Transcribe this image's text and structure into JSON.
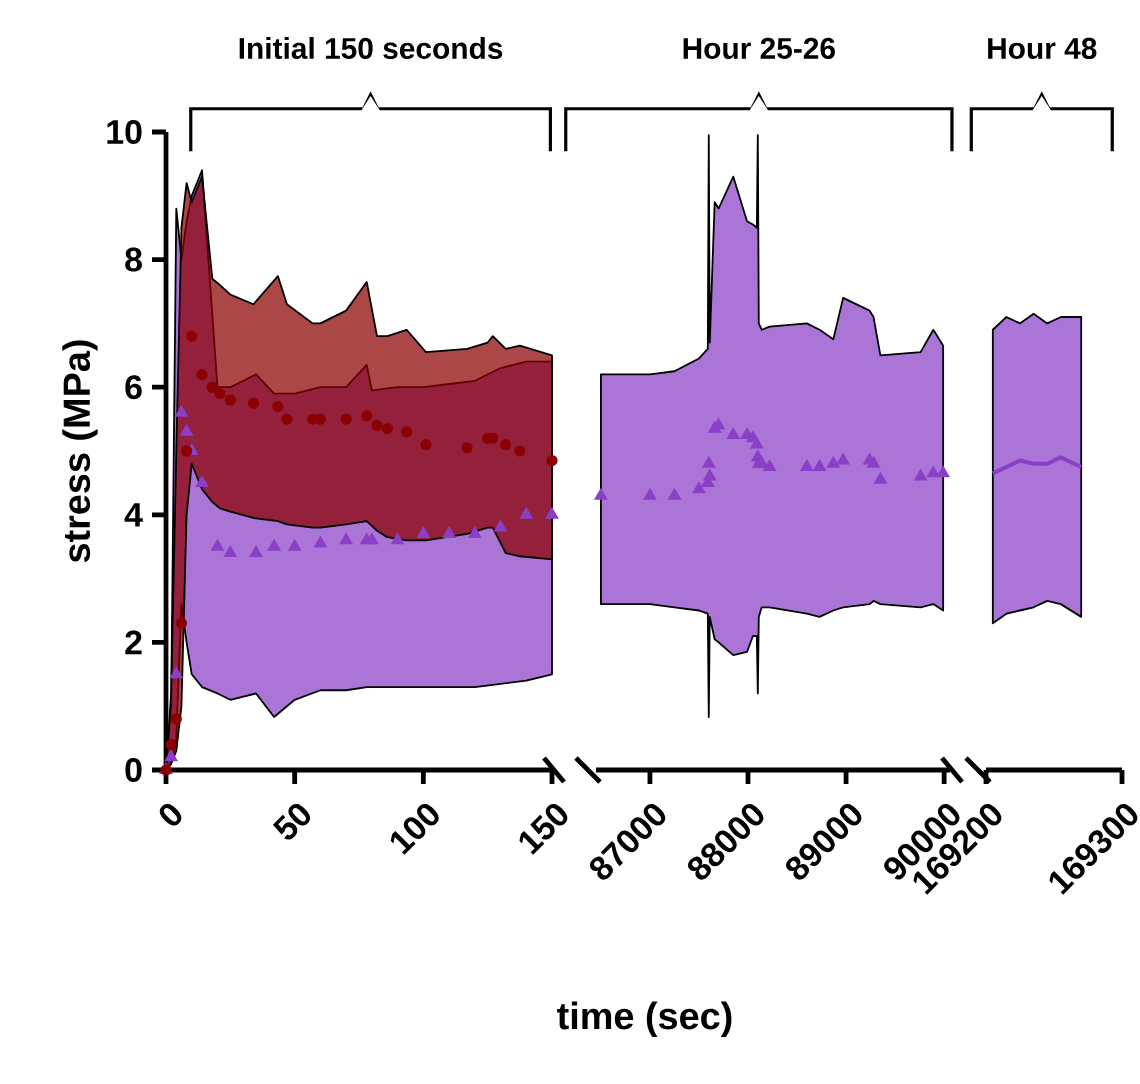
{
  "chart_data": [
    {
      "type": "scatter",
      "title": "Initial 150 seconds",
      "ylabel": "stress (MPa)",
      "xlim": [
        0,
        150
      ],
      "ylim": [
        0,
        10
      ],
      "xticks": [
        0,
        50,
        100,
        150
      ],
      "yticks": [
        0,
        2,
        4,
        6,
        8,
        10
      ],
      "series": [
        {
          "color": "#8a3fc7",
          "marker": "triangle",
          "x": [
            0,
            2,
            4,
            6,
            8,
            10,
            14,
            20,
            25,
            35,
            42,
            50,
            60,
            70,
            78,
            80,
            90,
            100,
            110,
            120,
            130,
            140,
            150
          ],
          "values": [
            0,
            0.2,
            1.5,
            5.6,
            5.3,
            5.0,
            4.5,
            3.5,
            3.4,
            3.4,
            3.5,
            3.5,
            3.55,
            3.6,
            3.6,
            3.6,
            3.6,
            3.7,
            3.7,
            3.7,
            3.8,
            4.0,
            4.0
          ],
          "lower": [
            0,
            0.1,
            0.5,
            2.6,
            2.0,
            1.5,
            1.3,
            1.2,
            1.1,
            1.2,
            0.83,
            1.1,
            1.25,
            1.25,
            1.3,
            1.3,
            1.3,
            1.3,
            1.3,
            1.3,
            1.35,
            1.4,
            1.5
          ],
          "upper": [
            0,
            1.0,
            8.8,
            8.0,
            8.6,
            9.0,
            9.4,
            6.0,
            6.0,
            6.2,
            5.9,
            5.9,
            6.0,
            6.0,
            6.35,
            5.95,
            6.0,
            6.0,
            6.05,
            6.1,
            6.3,
            6.4,
            6.4
          ]
        },
        {
          "color": "#8b0000",
          "marker": "circle",
          "x": [
            0,
            2,
            4,
            6,
            8,
            10,
            14,
            18,
            21,
            25,
            34,
            43.5,
            47,
            57,
            60,
            70,
            78,
            82,
            86,
            93.5,
            101,
            117,
            125,
            127,
            132,
            137.5,
            150
          ],
          "values": [
            0,
            0.4,
            0.8,
            2.3,
            5.0,
            6.8,
            6.2,
            6.0,
            5.9,
            5.8,
            5.75,
            5.7,
            5.5,
            5.5,
            5.5,
            5.5,
            5.55,
            5.4,
            5.35,
            5.3,
            5.1,
            5.05,
            5.2,
            5.2,
            5.1,
            5.0,
            4.85
          ],
          "lower": [
            0,
            0.1,
            0.3,
            1.0,
            4.0,
            4.8,
            4.4,
            4.2,
            4.1,
            4.05,
            3.95,
            3.9,
            3.85,
            3.8,
            3.8,
            3.85,
            3.9,
            3.75,
            3.65,
            3.6,
            3.6,
            3.7,
            3.8,
            3.8,
            3.4,
            3.35,
            3.3
          ],
          "upper": [
            0,
            1.2,
            5.0,
            8.5,
            9.2,
            8.9,
            9.3,
            7.7,
            7.6,
            7.45,
            7.3,
            7.74,
            7.3,
            7.0,
            7.0,
            7.2,
            7.65,
            6.8,
            6.8,
            6.9,
            6.55,
            6.6,
            6.7,
            6.8,
            6.6,
            6.65,
            6.5
          ]
        }
      ]
    },
    {
      "type": "scatter",
      "title": "Hour 25-26",
      "xlabel": "time (sec)",
      "xlim": [
        86450,
        90060
      ],
      "ylim": [
        0,
        10
      ],
      "xticks": [
        87000,
        88000,
        89000,
        90000
      ],
      "tick_labels": "x",
      "series": [
        {
          "color": "#8a3fc7",
          "marker": "triangle",
          "x": [
            86500,
            87000,
            87250,
            87500,
            87590,
            87600,
            87610,
            87660,
            87700,
            87850,
            87990,
            88050,
            88090,
            88100,
            88110,
            88140,
            88220,
            88600,
            88730,
            88870,
            88970,
            89240,
            89280,
            89350,
            89760,
            89890,
            89990
          ],
          "values": [
            4.3,
            4.3,
            4.3,
            4.4,
            4.5,
            4.8,
            4.6,
            5.35,
            5.4,
            5.25,
            5.25,
            5.2,
            5.1,
            4.9,
            4.8,
            4.8,
            4.75,
            4.75,
            4.75,
            4.8,
            4.85,
            4.85,
            4.8,
            4.55,
            4.6,
            4.65,
            4.65
          ],
          "lower": [
            2.6,
            2.6,
            2.55,
            2.5,
            2.45,
            0.83,
            2.4,
            2.05,
            2.0,
            1.8,
            1.85,
            2.1,
            2.1,
            1.2,
            2.4,
            2.55,
            2.55,
            2.45,
            2.4,
            2.5,
            2.55,
            2.6,
            2.65,
            2.6,
            2.55,
            2.6,
            2.5
          ],
          "upper": [
            6.2,
            6.2,
            6.25,
            6.45,
            6.6,
            9.95,
            6.7,
            8.9,
            8.8,
            9.3,
            8.6,
            8.55,
            8.5,
            9.95,
            7.0,
            6.9,
            6.95,
            7.0,
            6.9,
            6.75,
            7.4,
            7.2,
            7.1,
            6.5,
            6.55,
            6.9,
            6.65
          ]
        }
      ]
    },
    {
      "type": "scatter",
      "title": "Hour 48",
      "xlim": [
        169200,
        169300
      ],
      "ylim": [
        0,
        10
      ],
      "xticks": [
        169200,
        169300
      ],
      "tick_labels": "x",
      "series": [
        {
          "type": "line",
          "color": "#8a3fc7",
          "x": [
            169205,
            169215,
            169225,
            169235,
            169245,
            169255,
            169270
          ],
          "values": [
            4.65,
            4.75,
            4.85,
            4.8,
            4.8,
            4.9,
            4.75
          ],
          "lower": [
            2.3,
            2.45,
            2.5,
            2.55,
            2.65,
            2.6,
            2.4
          ],
          "upper": [
            6.9,
            7.1,
            7.0,
            7.15,
            7.0,
            7.1,
            7.1
          ]
        }
      ]
    }
  ]
}
